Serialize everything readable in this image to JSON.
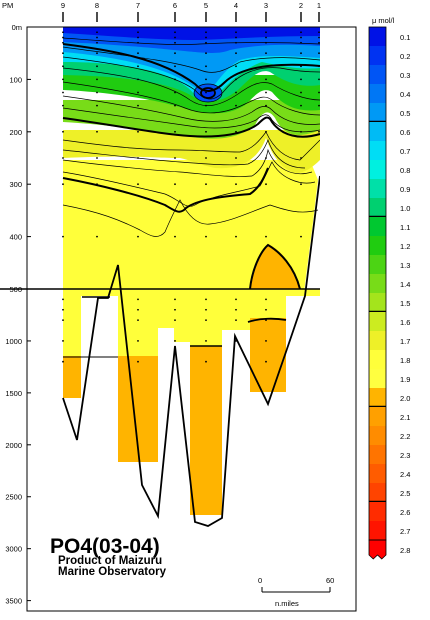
{
  "chart_data": {
    "type": "heatmap",
    "title": "PO4(03-04)",
    "subtitle_line1": "Product of Maizuru",
    "subtitle_line2": "Marine Observatory",
    "top_axis_label": "PM",
    "stations": [
      "9",
      "8",
      "7",
      "6",
      "5",
      "4",
      "3",
      "2",
      "1"
    ],
    "depth_ticks_upper": [
      "0m",
      "100",
      "200",
      "300",
      "400",
      "500"
    ],
    "depth_ticks_lower": [
      "1000",
      "1500",
      "2000",
      "2500",
      "3000",
      "3500"
    ],
    "upper_depth_range": [
      0,
      500
    ],
    "lower_depth_range": [
      500,
      3600
    ],
    "colorbar": {
      "unit": "μ mol/l",
      "levels": [
        "0.1",
        "0.2",
        "0.3",
        "0.4",
        "0.5",
        "0.6",
        "0.7",
        "0.8",
        "0.9",
        "1.0",
        "1.1",
        "1.2",
        "1.3",
        "1.4",
        "1.5",
        "1.6",
        "1.7",
        "1.8",
        "1.9",
        "2.0",
        "2.1",
        "2.2",
        "2.3",
        "2.4",
        "2.5",
        "2.6",
        "2.7",
        "2.8"
      ],
      "colors": [
        "#0012e6",
        "#0033f2",
        "#0055f5",
        "#0077f5",
        "#0099f5",
        "#00bbf5",
        "#00ddf5",
        "#00f0e0",
        "#00e0a8",
        "#00d070",
        "#00c830",
        "#20cc10",
        "#4cd414",
        "#78dc18",
        "#a4e41c",
        "#ccec20",
        "#eef028",
        "#ffff3a",
        "#ffff40",
        "#ffb400",
        "#ffa000",
        "#ff8c00",
        "#ff7400",
        "#ff5c00",
        "#ff4400",
        "#ff2c00",
        "#ff1400",
        "#ff0000"
      ],
      "thick_levels": [
        "0.5",
        "1.0",
        "1.5",
        "2.0",
        "2.5"
      ]
    },
    "scale_bar": {
      "start": "0",
      "end": "60",
      "unit": "n.miles"
    }
  }
}
